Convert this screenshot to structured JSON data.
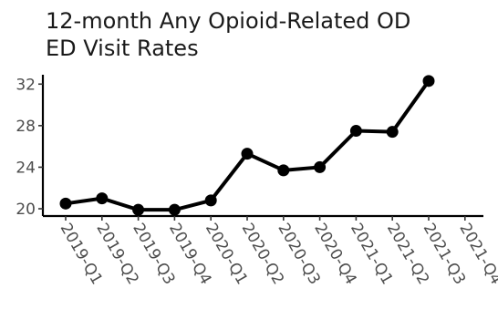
{
  "chart_data": {
    "type": "line",
    "title_lines": [
      "12-month Any Opioid-Related OD",
      "ED Visit Rates"
    ],
    "xlabel": "",
    "ylabel": "",
    "categories": [
      "2019-Q1",
      "2019-Q2",
      "2019-Q3",
      "2019-Q4",
      "2020-Q1",
      "2020-Q2",
      "2020-Q3",
      "2020-Q4",
      "2021-Q1",
      "2021-Q2",
      "2021-Q3",
      "2021-Q4"
    ],
    "series": [
      {
        "values": [
          20.5,
          21.0,
          19.9,
          19.9,
          20.8,
          25.3,
          23.7,
          24.0,
          27.5,
          27.4,
          32.3,
          null
        ],
        "color": "#000000"
      }
    ],
    "yticks": [
      20,
      24,
      28,
      32
    ],
    "ylim": [
      19.3,
      32.9
    ],
    "grid": false,
    "legend": "none"
  }
}
